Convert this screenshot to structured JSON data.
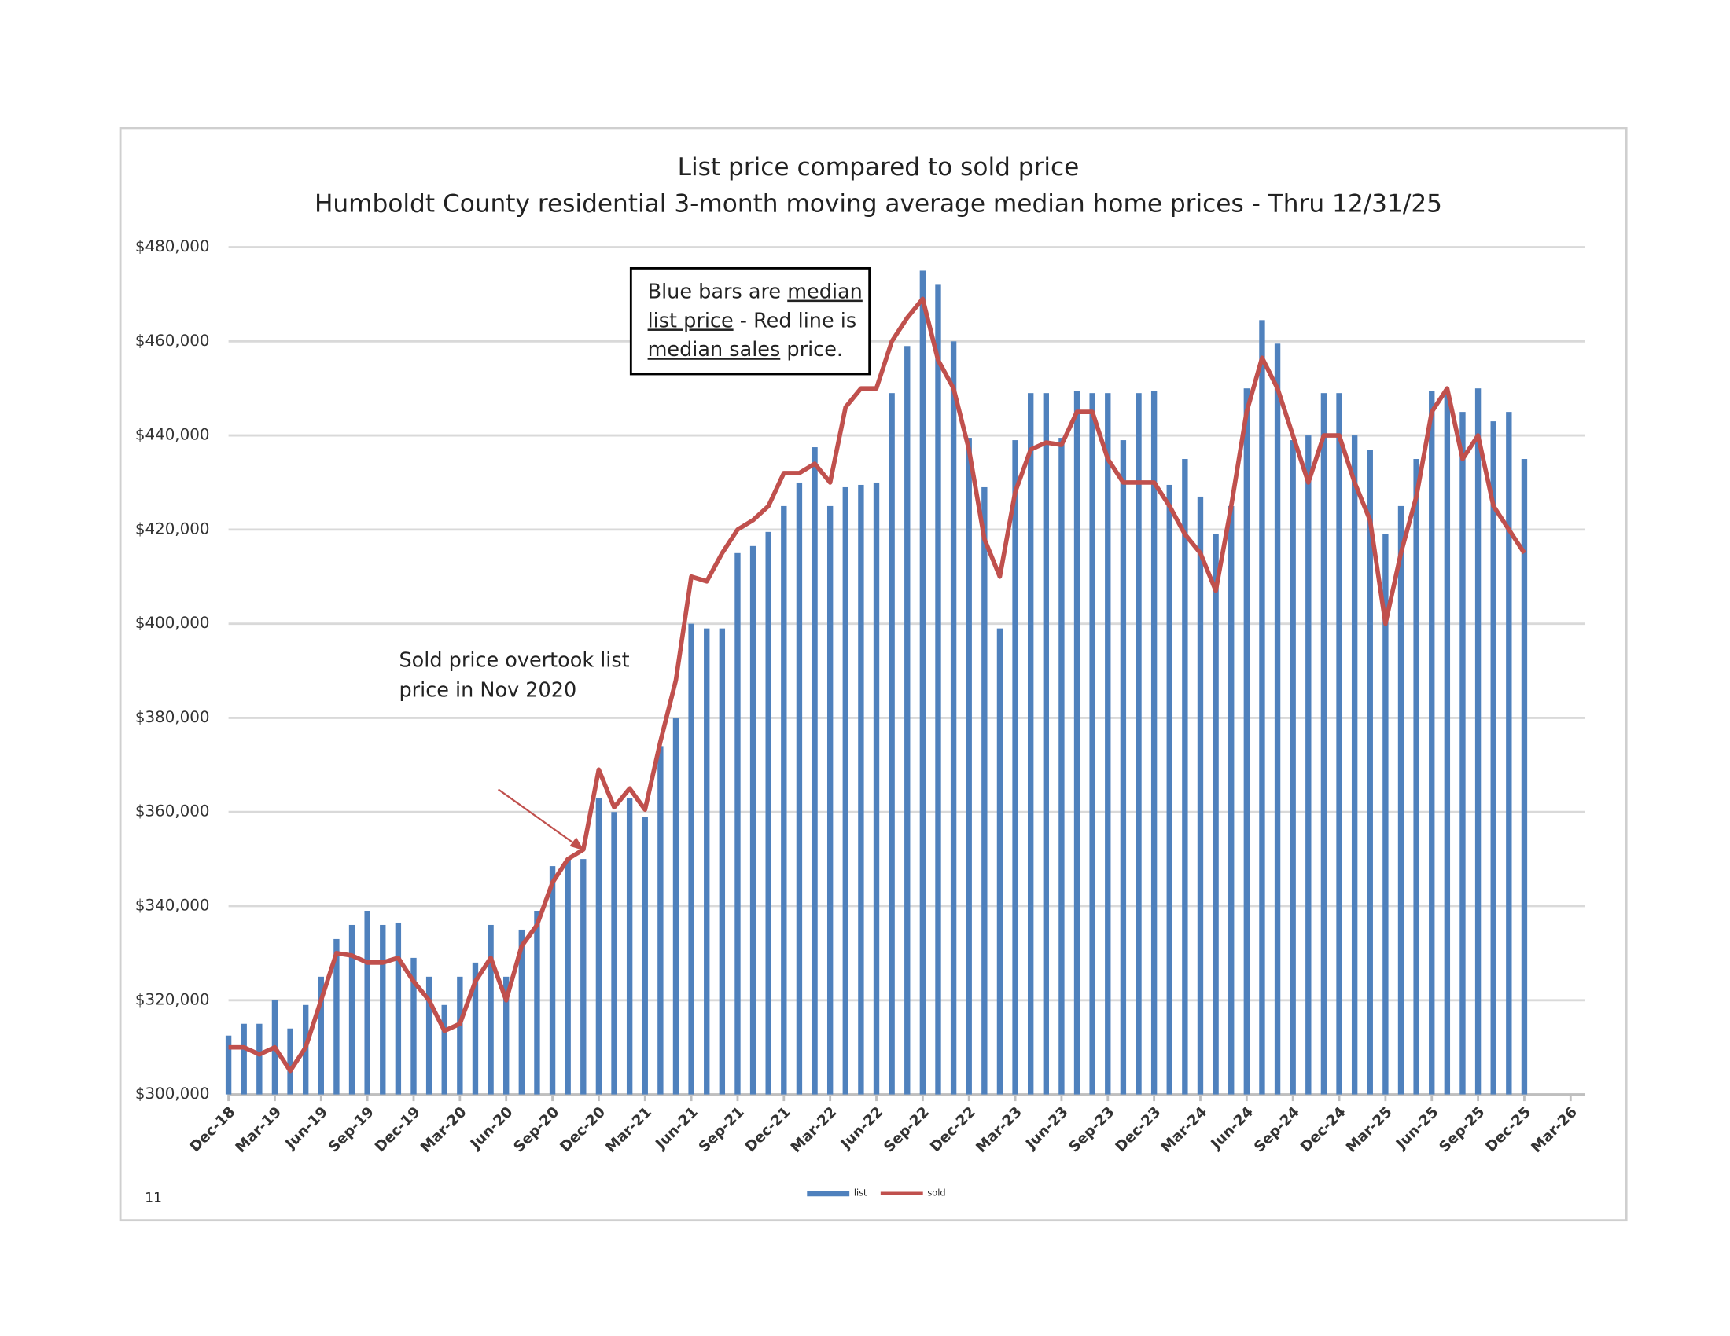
{
  "chart_data": {
    "type": "bar_line",
    "title": "List price compared to sold price",
    "subtitle": "Humboldt County residential 3-month moving average median home prices - Thru 12/31/25",
    "categories": [
      "Dec-18",
      null,
      null,
      "Mar-19",
      null,
      null,
      "Jun-19",
      null,
      null,
      "Sep-19",
      null,
      null,
      "Dec-19",
      null,
      null,
      "Mar-20",
      null,
      null,
      "Jun-20",
      null,
      null,
      "Sep-20",
      null,
      null,
      "Dec-20",
      null,
      null,
      "Mar-21",
      null,
      null,
      "Jun-21",
      null,
      null,
      "Sep-21",
      null,
      null,
      "Dec-21",
      null,
      null,
      "Mar-22",
      null,
      null,
      "Jun-22",
      null,
      null,
      "Sep-22",
      null,
      null,
      "Dec-22",
      null,
      null,
      "Mar-23",
      null,
      null,
      "Jun-23",
      null,
      null,
      "Sep-23",
      null,
      null,
      "Dec-23",
      null,
      null,
      "Mar-24",
      null,
      null,
      "Jun-24",
      null,
      null,
      "Sep-24",
      null,
      null,
      "Dec-24",
      null,
      null,
      "Mar-25",
      null,
      null,
      "Jun-25",
      null,
      null,
      "Sep-25",
      null,
      null,
      "Dec-25",
      null,
      null,
      "Mar-26"
    ],
    "series": [
      {
        "name": "list",
        "type": "bar",
        "color": "#4f81bd",
        "values": [
          312500,
          315000,
          315000,
          320000,
          314000,
          319000,
          325000,
          333000,
          336000,
          339000,
          336000,
          336500,
          329000,
          325000,
          319000,
          325000,
          328000,
          336000,
          325000,
          335000,
          339000,
          348500,
          350000,
          350000,
          363000,
          360000,
          363000,
          359000,
          374000,
          380000,
          400000,
          399000,
          399000,
          415000,
          416500,
          419500,
          425000,
          430000,
          437500,
          425000,
          429000,
          429500,
          430000,
          449000,
          459000,
          475000,
          472000,
          460000,
          439500,
          429000,
          399000,
          439000,
          449000,
          449000,
          439500,
          449500,
          449000,
          449000,
          439000,
          449000,
          449500,
          429500,
          435000,
          427000,
          419000,
          425000,
          450000,
          464500,
          459500,
          439000,
          440000,
          449000,
          449000,
          440000,
          437000,
          419000,
          425000,
          435000,
          449500,
          449000,
          445000,
          450000,
          443000,
          445000,
          435000,
          null,
          null,
          null
        ]
      },
      {
        "name": "sold",
        "type": "line",
        "color": "#c0504d",
        "values": [
          310000,
          310000,
          308500,
          310000,
          305000,
          310000,
          320000,
          330000,
          329500,
          328000,
          328000,
          329000,
          324000,
          320000,
          313500,
          315000,
          324000,
          329000,
          320000,
          331500,
          336000,
          345000,
          350000,
          352000,
          369000,
          361000,
          365000,
          360500,
          375000,
          388000,
          410000,
          409000,
          415000,
          420000,
          422000,
          425000,
          432000,
          432000,
          434000,
          430000,
          446000,
          450000,
          450000,
          460000,
          465000,
          469000,
          456000,
          450000,
          437000,
          418000,
          410000,
          428000,
          437000,
          438500,
          438000,
          445000,
          445000,
          435000,
          430000,
          430000,
          430000,
          425000,
          419000,
          415000,
          407000,
          425000,
          445000,
          456500,
          450000,
          440000,
          430000,
          440000,
          440000,
          430000,
          422000,
          400000,
          415000,
          427000,
          445000,
          450000,
          435000,
          440000,
          425000,
          420000,
          415000,
          null,
          null,
          null
        ]
      }
    ],
    "ylim": [
      300000,
      480000
    ],
    "yticks": [
      {
        "value": 300000,
        "label": "$300,000"
      },
      {
        "value": 320000,
        "label": "$320,000"
      },
      {
        "value": 340000,
        "label": "$340,000"
      },
      {
        "value": 360000,
        "label": "$360,000"
      },
      {
        "value": 380000,
        "label": "$380,000"
      },
      {
        "value": 400000,
        "label": "$400,000"
      },
      {
        "value": 420000,
        "label": "$420,000"
      },
      {
        "value": 440000,
        "label": "$440,000"
      },
      {
        "value": 460000,
        "label": "$460,000"
      },
      {
        "value": 480000,
        "label": "$480,000"
      }
    ],
    "grid": true,
    "legend": "bottom",
    "note_box": [
      [
        {
          "text": "Blue bars are ",
          "underline": false
        },
        {
          "text": "median",
          "underline": true
        }
      ],
      [
        {
          "text": "list price",
          "underline": true
        },
        {
          "text": " - Red line is",
          "underline": false
        }
      ],
      [
        {
          "text": "median sales",
          "underline": true
        },
        {
          "text": " price.",
          "underline": false
        }
      ]
    ],
    "annotation": [
      "Sold price overtook list",
      "price in Nov 2020"
    ],
    "page_number": "11"
  }
}
